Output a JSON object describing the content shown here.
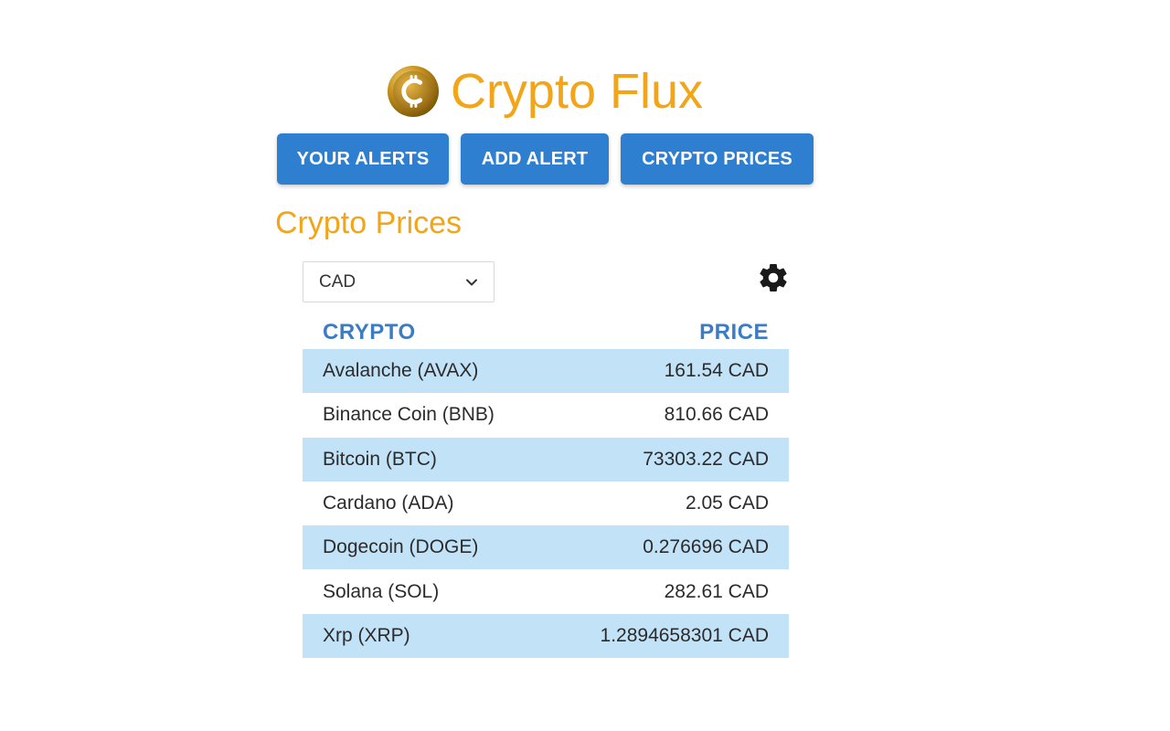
{
  "header": {
    "title": "Crypto Flux",
    "logo_icon": "bitcoin-coin-icon"
  },
  "nav": {
    "your_alerts": "YOUR ALERTS",
    "add_alert": "ADD ALERT",
    "crypto_prices": "CRYPTO PRICES"
  },
  "main": {
    "section_title": "Crypto Prices",
    "currency": {
      "selected": "CAD"
    },
    "settings_icon": "gear-icon",
    "table": {
      "headers": {
        "crypto": "CRYPTO",
        "price": "PRICE"
      },
      "rows": [
        {
          "name": "Avalanche (AVAX)",
          "price": "161.54 CAD"
        },
        {
          "name": "Binance Coin (BNB)",
          "price": "810.66 CAD"
        },
        {
          "name": "Bitcoin (BTC)",
          "price": "73303.22 CAD"
        },
        {
          "name": "Cardano (ADA)",
          "price": "2.05 CAD"
        },
        {
          "name": "Dogecoin (DOGE)",
          "price": "0.276696 CAD"
        },
        {
          "name": "Solana (SOL)",
          "price": "282.61 CAD"
        },
        {
          "name": "Xrp (XRP)",
          "price": "1.2894658301 CAD"
        }
      ]
    }
  },
  "colors": {
    "brand": "#f2a518",
    "button": "#2f7fd0",
    "header_text": "#3c7cc4",
    "row_alt": "#c2e2f7"
  }
}
